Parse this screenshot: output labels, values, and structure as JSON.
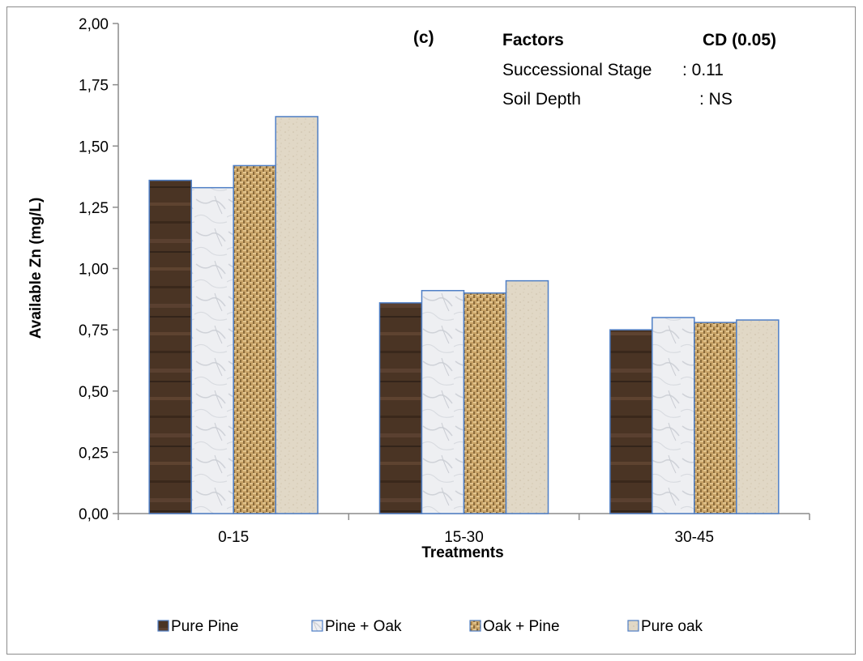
{
  "chart_data": {
    "type": "bar",
    "categories": [
      "0-15",
      "15-30",
      "30-45"
    ],
    "series": [
      {
        "name": "Pure Pine",
        "values": [
          1.36,
          0.86,
          0.75
        ],
        "color": "#4a3424"
      },
      {
        "name": "Pine + Oak",
        "values": [
          1.33,
          0.91,
          0.8
        ],
        "color": "#e9eaee"
      },
      {
        "name": "Oak + Pine",
        "values": [
          1.42,
          0.9,
          0.78
        ],
        "color": "#c9a468"
      },
      {
        "name": "Pure oak",
        "values": [
          1.62,
          0.95,
          0.79
        ],
        "color": "#e1d8c6"
      }
    ],
    "xlabel": "Treatments",
    "ylabel": "Available Zn (mg/L)",
    "ylim": [
      0,
      2
    ],
    "yticks": [
      "0,00",
      "0,25",
      "0,50",
      "0,75",
      "1,00",
      "1,25",
      "1,50",
      "1,75",
      "2,00"
    ],
    "grid": false,
    "legend": "bottom",
    "annotations": {
      "panel_label": "(c)",
      "factors_header": "Factors",
      "cd_header": "CD (0.05)",
      "rows": [
        {
          "factor": "Successional Stage",
          "value": ":  0.11"
        },
        {
          "factor": "Soil Depth",
          "value": ":  NS"
        }
      ]
    }
  }
}
